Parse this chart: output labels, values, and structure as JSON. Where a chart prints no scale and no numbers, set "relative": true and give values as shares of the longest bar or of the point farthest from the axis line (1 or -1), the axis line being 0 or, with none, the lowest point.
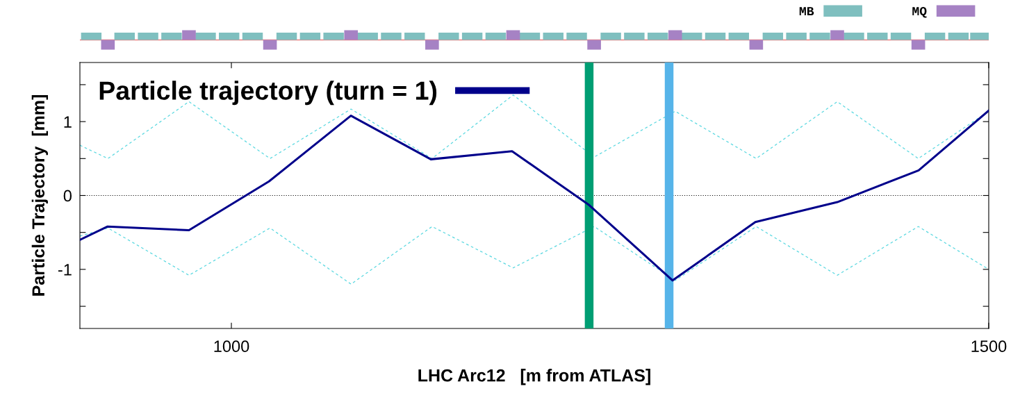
{
  "chart_data": [
    {
      "type": "bar",
      "relative": true,
      "tick_labels": false,
      "legend": "top right",
      "xlim": [
        900,
        1500
      ],
      "ref_lines": [
        {
          "axis": "y",
          "value": 0,
          "color": "#f08080",
          "line_style": "solid"
        }
      ],
      "series": [
        {
          "name": "MB",
          "color": "#7fbfbf",
          "x": [
            907.5,
            929.5,
            945,
            960.5,
            983,
            998.5,
            1014,
            1036.5,
            1052,
            1067.5,
            1090,
            1105.5,
            1121,
            1143.5,
            1159,
            1174.5,
            1197,
            1212.5,
            1228,
            1250.5,
            1266,
            1281.5,
            1304,
            1319.5,
            1335,
            1357.5,
            1373,
            1388.5,
            1411,
            1426.5,
            1442,
            1464.5,
            1480,
            1494.5
          ],
          "values": [
            0.75,
            0.75,
            0.75,
            0.75,
            0.75,
            0.75,
            0.75,
            0.75,
            0.75,
            0.75,
            0.75,
            0.75,
            0.75,
            0.75,
            0.75,
            0.75,
            0.75,
            0.75,
            0.75,
            0.75,
            0.75,
            0.75,
            0.75,
            0.75,
            0.75,
            0.75,
            0.75,
            0.75,
            0.75,
            0.75,
            0.75,
            0.75,
            0.75,
            0.75
          ]
        },
        {
          "name": "MQ",
          "color": "#a682c4",
          "x": [
            918.5,
            972,
            1025.5,
            1079,
            1132.5,
            1186,
            1239.5,
            1293,
            1346.5,
            1400,
            1453.5
          ],
          "values": [
            -1,
            1,
            -1,
            1,
            -1,
            1,
            -1,
            1,
            -1,
            1,
            -1
          ]
        }
      ]
    },
    {
      "type": "line",
      "xlabel": "LHC Arc12   [m from ATLAS]",
      "ylabel": "Particle Trajectory  [mm]",
      "xlim": [
        900,
        1500
      ],
      "ylim": [
        -1.8,
        1.8
      ],
      "xticks": [
        1000,
        1500
      ],
      "yticks": [
        {
          "value": -1.5,
          "label": null
        },
        -1,
        {
          "value": -0.5,
          "label": null
        },
        0,
        {
          "value": 0.5,
          "label": null
        },
        1,
        {
          "value": 1.5,
          "label": null
        }
      ],
      "grid": false,
      "legend": "top left",
      "ref_lines": [
        {
          "axis": "y",
          "value": 0,
          "color": "#000000",
          "line_style": "dotted"
        },
        {
          "axis": "x",
          "value": 1236.2,
          "color": "#009e73",
          "line_style": "solid"
        },
        {
          "axis": "x",
          "value": 1289,
          "color": "#56b4e9",
          "line_style": "solid"
        }
      ],
      "series": [
        {
          "color": "#5ad8e0",
          "line_style": "dashed",
          "x": [
            900,
            918.5,
            972,
            1025.5,
            1079,
            1132.5,
            1186,
            1239.5,
            1293,
            1346.5,
            1400,
            1453.5,
            1500
          ],
          "values": [
            0.68,
            0.5,
            1.27,
            0.5,
            1.17,
            0.5,
            1.36,
            0.52,
            1.14,
            0.5,
            1.27,
            0.5,
            1.14
          ]
        },
        {
          "color": "#5ad8e0",
          "line_style": "dashed",
          "x": [
            900,
            918.5,
            972,
            1025.5,
            1079,
            1132.5,
            1186,
            1239.5,
            1293,
            1346.5,
            1400,
            1453.5,
            1500
          ],
          "values": [
            -0.55,
            -0.44,
            -1.08,
            -0.44,
            -1.2,
            -0.42,
            -0.98,
            -0.42,
            -1.15,
            -0.42,
            -1.08,
            -0.42,
            -1.0
          ]
        },
        {
          "name": "Particle trajectory (turn = 1)",
          "color": "#00008b",
          "line_style": "solid",
          "x": [
            900,
            918.3,
            972,
            1024.8,
            1078.9,
            1131.7,
            1185.3,
            1236.2,
            1291.3,
            1345.9,
            1400,
            1453.7,
            1500
          ],
          "values": [
            -0.6,
            -0.42,
            -0.47,
            0.19,
            1.08,
            0.49,
            0.6,
            -0.13,
            -1.15,
            -0.36,
            -0.09,
            0.34,
            1.15
          ]
        }
      ]
    }
  ]
}
